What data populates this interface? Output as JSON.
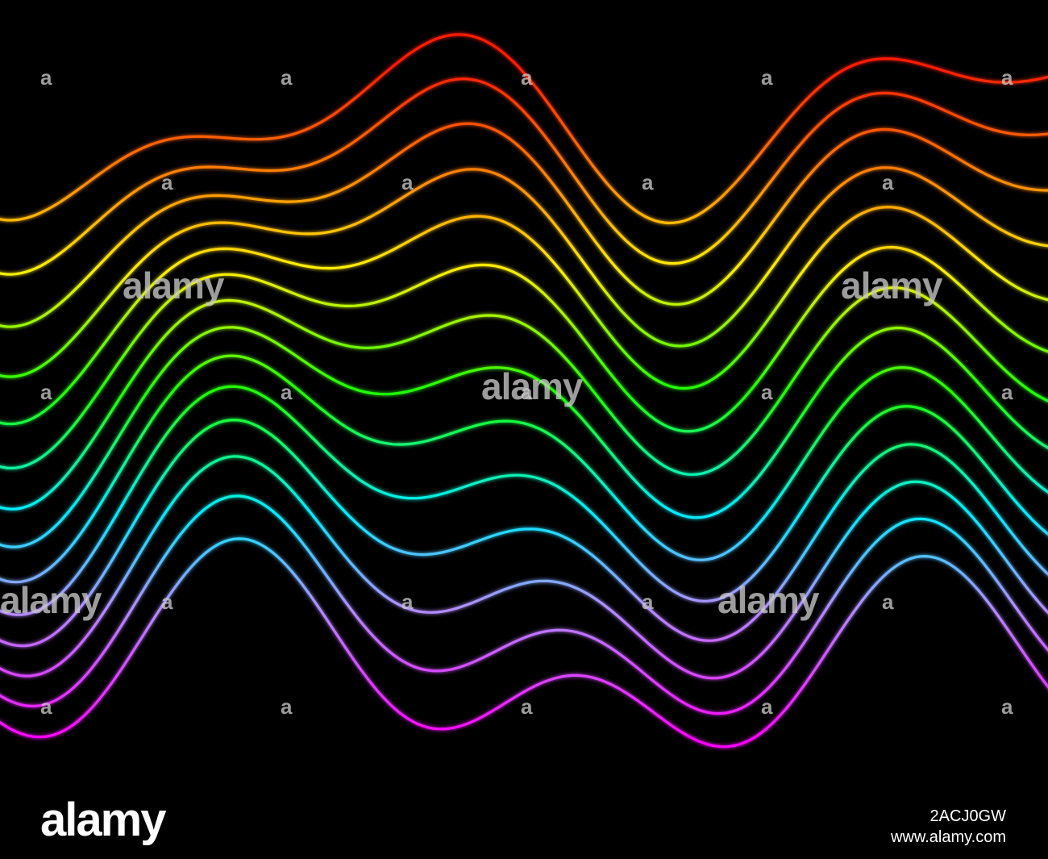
{
  "watermark": {
    "logo": "alamy",
    "mark": "a"
  },
  "footer": {
    "logo": "alamy",
    "image_id": "2ACJ0GW",
    "url": "www.alamy.com"
  }
}
